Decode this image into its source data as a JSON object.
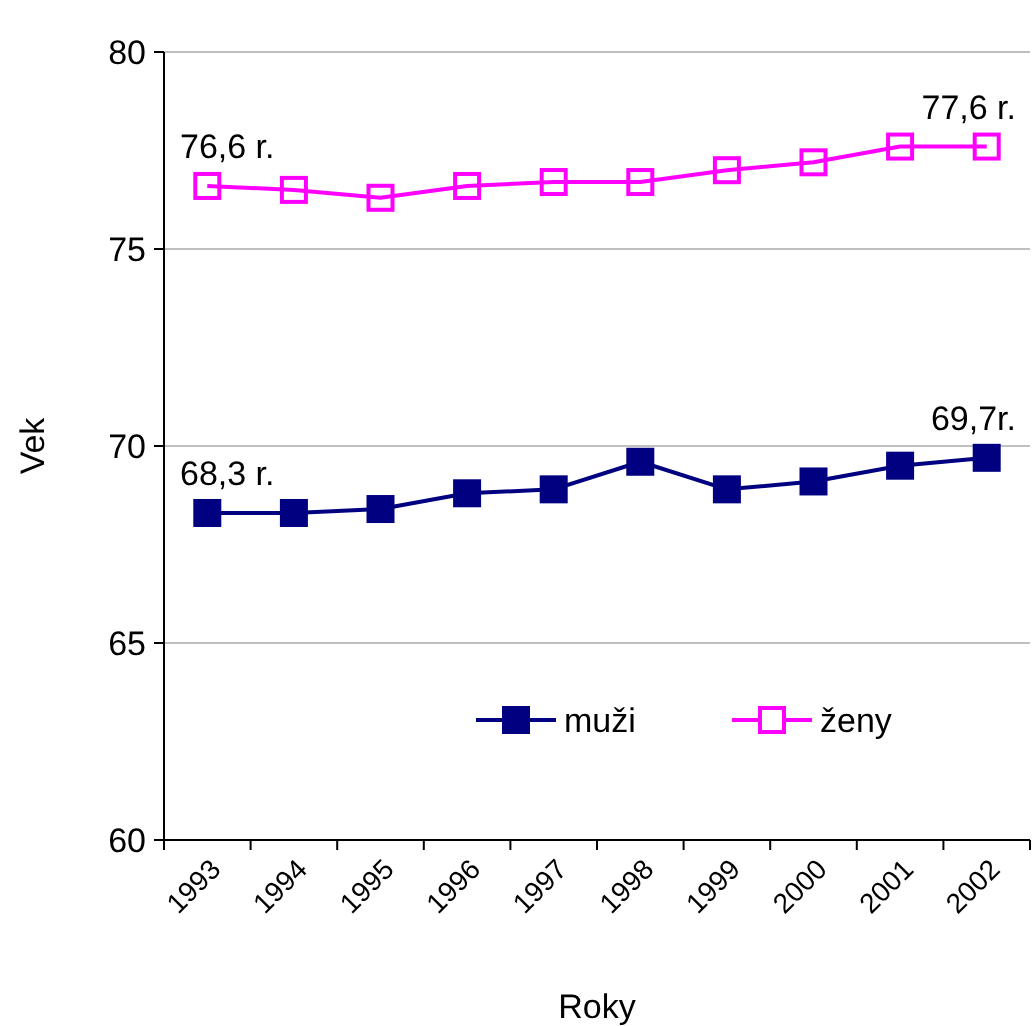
{
  "chart_data": {
    "type": "line",
    "xlabel": "Roky",
    "ylabel": "Vek",
    "categories": [
      "1993",
      "1994",
      "1995",
      "1996",
      "1997",
      "1998",
      "1999",
      "2000",
      "2001",
      "2002"
    ],
    "series": [
      {
        "name": "muži",
        "color": "#000080",
        "values": [
          68.3,
          68.3,
          68.4,
          68.8,
          68.9,
          69.6,
          68.9,
          69.1,
          69.5,
          69.7
        ]
      },
      {
        "name": "ženy",
        "color": "#ff00ff",
        "values": [
          76.6,
          76.5,
          76.3,
          76.6,
          76.7,
          76.7,
          77.0,
          77.2,
          77.6,
          77.6
        ]
      }
    ],
    "ylim": [
      60,
      80
    ],
    "yticks": [
      60,
      65,
      70,
      75,
      80
    ],
    "grid": "y",
    "legend": "bottom right",
    "marker": "square",
    "line_style": "solid",
    "annotations": [
      {
        "text": "76,6 r.",
        "x": "1993",
        "y": 76.6
      },
      {
        "text": "77,6 r.",
        "x": "2002",
        "y": 77.6
      },
      {
        "text": "68,3 r.",
        "x": "1993",
        "y": 68.3
      },
      {
        "text": "69,7r.",
        "x": "2002",
        "y": 69.7
      }
    ]
  }
}
